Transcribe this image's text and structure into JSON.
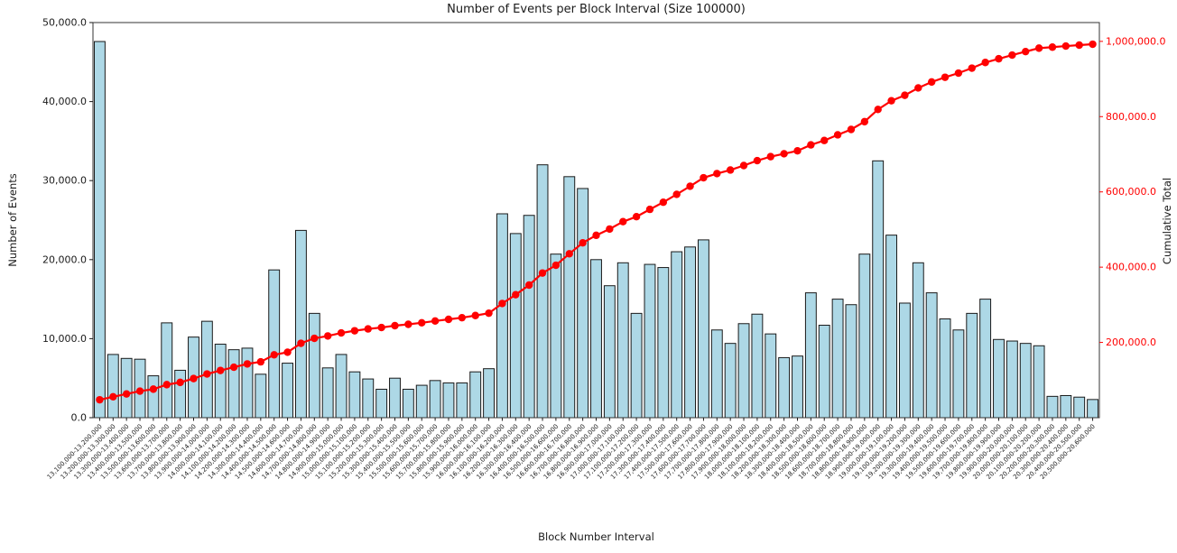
{
  "figure": {
    "background": "#ffffff"
  },
  "chart_data": {
    "type": "bar+line",
    "title": "Number of Events per Block Interval (Size 100000)",
    "xlabel": "Block Number Interval",
    "ylabel_left": "Number of Events",
    "ylabel_right": "Cumulative Total",
    "grid": false,
    "legend": false,
    "colors": {
      "bar_fill": "#add8e6",
      "bar_edge": "#1a1a1a",
      "line": "#ff0000",
      "text": "#1a1a1a",
      "spine": "#333333"
    },
    "left_ylim": [
      0,
      50000
    ],
    "right_ylim": [
      0,
      1050000
    ],
    "y_left_ticks": {
      "values": [
        0,
        10000,
        20000,
        30000,
        40000,
        50000
      ],
      "labels": [
        "0.0",
        "10,000.0",
        "20,000.0",
        "30,000.0",
        "40,000.0",
        "50,000.0"
      ]
    },
    "y_right_ticks": {
      "values": [
        200000,
        400000,
        600000,
        800000,
        1000000
      ],
      "labels": [
        "200,000.0",
        "400,000.0",
        "600,000.0",
        "800,000.0",
        "1,000,000.0"
      ]
    },
    "categories": [
      "13,100,000-13,200,000",
      "13,200,000-13,300,000",
      "13,300,000-13,400,000",
      "13,400,000-13,500,000",
      "13,500,000-13,600,000",
      "13,600,000-13,700,000",
      "13,700,000-13,800,000",
      "13,800,000-13,900,000",
      "13,900,000-14,000,000",
      "14,000,000-14,100,000",
      "14,100,000-14,200,000",
      "14,200,000-14,300,000",
      "14,300,000-14,400,000",
      "14,400,000-14,500,000",
      "14,500,000-14,600,000",
      "14,600,000-14,700,000",
      "14,700,000-14,800,000",
      "14,800,000-14,900,000",
      "14,900,000-15,000,000",
      "15,000,000-15,100,000",
      "15,100,000-15,200,000",
      "15,200,000-15,300,000",
      "15,300,000-15,400,000",
      "15,400,000-15,500,000",
      "15,500,000-15,600,000",
      "15,600,000-15,700,000",
      "15,700,000-15,800,000",
      "15,800,000-15,900,000",
      "15,900,000-16,000,000",
      "16,000,000-16,100,000",
      "16,100,000-16,200,000",
      "16,200,000-16,300,000",
      "16,300,000-16,400,000",
      "16,400,000-16,500,000",
      "16,500,000-16,600,000",
      "16,600,000-16,700,000",
      "16,700,000-16,800,000",
      "16,800,000-16,900,000",
      "16,900,000-17,000,000",
      "17,000,000-17,100,000",
      "17,100,000-17,200,000",
      "17,200,000-17,300,000",
      "17,300,000-17,400,000",
      "17,400,000-17,500,000",
      "17,500,000-17,600,000",
      "17,600,000-17,700,000",
      "17,700,000-17,800,000",
      "17,800,000-17,900,000",
      "17,900,000-18,000,000",
      "18,000,000-18,100,000",
      "18,100,000-18,200,000",
      "18,200,000-18,300,000",
      "18,300,000-18,400,000",
      "18,400,000-18,500,000",
      "18,500,000-18,600,000",
      "18,600,000-18,700,000",
      "18,700,000-18,800,000",
      "18,800,000-18,900,000",
      "18,900,000-19,000,000",
      "19,000,000-19,100,000",
      "19,100,000-19,200,000",
      "19,200,000-19,300,000",
      "19,300,000-19,400,000",
      "19,400,000-19,500,000",
      "19,500,000-19,600,000",
      "19,600,000-19,700,000",
      "19,700,000-19,800,000",
      "19,800,000-19,900,000",
      "19,900,000-20,000,000",
      "20,000,000-20,100,000",
      "20,100,000-20,200,000",
      "20,200,000-20,300,000",
      "20,300,000-20,400,000",
      "20,400,000-20,500,000",
      "20,500,000-20,600,000"
    ],
    "series": [
      {
        "name": "Number of Events",
        "type": "bar",
        "axis": "left",
        "values": [
          47600,
          8000,
          7500,
          7400,
          5300,
          12000,
          6000,
          10200,
          12200,
          9300,
          8600,
          8800,
          5500,
          18700,
          6900,
          23700,
          13200,
          6300,
          8000,
          5800,
          4900,
          3600,
          5000,
          3600,
          4100,
          4700,
          4400,
          4400,
          5800,
          6200,
          25800,
          23300,
          25600,
          32000,
          20700,
          30500,
          29000,
          20000,
          16700,
          19600,
          13200,
          19400,
          19000,
          21000,
          21600,
          22500,
          11100,
          9400,
          11900,
          13100,
          10600,
          7600,
          7800,
          15800,
          11700,
          15000,
          14300,
          20700,
          32500,
          23100,
          14500,
          19600,
          15800,
          12500,
          11100,
          13200,
          15000,
          9900,
          9700,
          9400,
          9100,
          2700,
          2800,
          2600,
          2300
        ]
      },
      {
        "name": "Cumulative Total",
        "type": "line",
        "axis": "right",
        "values": [
          47600,
          55600,
          63100,
          70500,
          75800,
          87800,
          93800,
          104000,
          116200,
          125500,
          134100,
          142900,
          148400,
          167100,
          174000,
          197700,
          210900,
          217200,
          225200,
          231000,
          235900,
          239500,
          244500,
          248100,
          252200,
          256900,
          261300,
          265700,
          271500,
          277700,
          303500,
          326800,
          352400,
          384400,
          405100,
          435600,
          464600,
          484600,
          501300,
          520900,
          534100,
          553500,
          572500,
          593500,
          615100,
          637600,
          648700,
          658100,
          670000,
          683100,
          693700,
          701300,
          709100,
          724900,
          736600,
          751600,
          765900,
          786600,
          819100,
          842200,
          856700,
          876300,
          892100,
          904600,
          915700,
          928900,
          943900,
          953800,
          963500,
          972900,
          982000,
          984700,
          987500,
          990100,
          992400
        ]
      }
    ]
  }
}
